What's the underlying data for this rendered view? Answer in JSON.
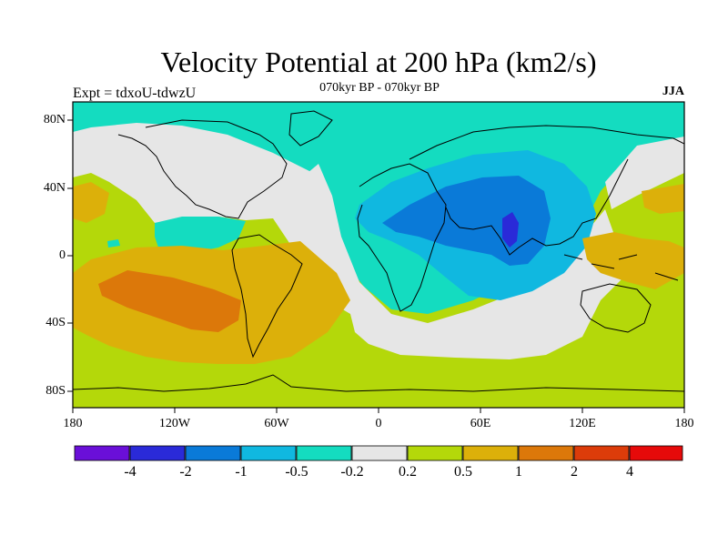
{
  "title": "Velocity Potential at 200 hPa (km2/s)",
  "subtitle": "070kyr BP - 070kyr BP",
  "left_string": "Expt = tdxoU-tdwzU",
  "right_string": "JJA",
  "y_tick_labels": [
    "80N",
    "40N",
    "0",
    "40S",
    "80S"
  ],
  "x_tick_labels": [
    "180",
    "120W",
    "60W",
    "0",
    "60E",
    "120E",
    "180"
  ],
  "colorbar": {
    "labels": [
      "-4",
      "-2",
      "-1",
      "-0.5",
      "-0.2",
      "0.2",
      "0.5",
      "1",
      "2",
      "4"
    ],
    "colors": [
      "#6a0fd8",
      "#2a2ad8",
      "#0a7ad8",
      "#10b8e0",
      "#14dcc0",
      "#e6e6e6",
      "#b4d80a",
      "#dcb00a",
      "#dc780a",
      "#dc3c0a",
      "#e60a0a"
    ]
  },
  "map_colors": {
    "neutral": "#e6e6e6",
    "neg_02": "#14dcc0",
    "neg_05": "#10b8e0",
    "neg_1": "#0a7ad8",
    "neg_2": "#2a2ad8",
    "pos_02": "#b4d80a",
    "pos_05": "#dcb00a",
    "pos_1": "#dc780a"
  }
}
